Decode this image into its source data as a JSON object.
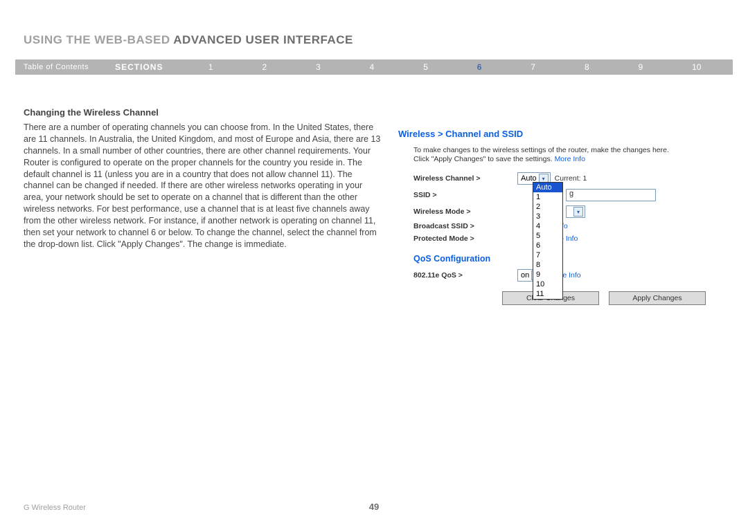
{
  "header": {
    "title_plain": "USING THE WEB-BASED ",
    "title_highlight": "ADVANCED USER INTERFACE"
  },
  "nav": {
    "toc_label": "Table of Contents",
    "sections_label": "SECTIONS",
    "numbers": [
      "1",
      "2",
      "3",
      "4",
      "5",
      "6",
      "7",
      "8",
      "9",
      "10"
    ],
    "active_index": 5,
    "bg_color": "#b4b4b4",
    "active_color": "#426ea6"
  },
  "article": {
    "heading": "Changing the Wireless Channel",
    "body": "There are a number of operating channels you can choose from. In the United States, there are 11 channels. In Australia, the United Kingdom, and most of Europe and Asia, there are 13 channels. In a small number of other countries, there are other channel requirements. Your Router is configured to operate on the proper channels for the country you reside in. The default channel is 11 (unless you are in a country that does not allow channel 11). The channel can be changed if needed. If there are other wireless networks operating in your area, your network should be set to operate on a channel that is different than the other wireless networks. For best performance, use a channel that is at least five channels away from the other wireless network. For instance, if another network is operating on channel 11, then set your network to channel 6 or below. To change the channel, select the channel from the drop-down list. Click \"Apply Changes\". The change is immediate."
  },
  "panel": {
    "breadcrumb": "Wireless > Channel and SSID",
    "description_pre": "To make changes to the wireless settings of the router, make the changes here. Click \"Apply Changes\" to save the settings. ",
    "more_info": "More Info",
    "rows": {
      "channel_label": "Wireless Channel >",
      "channel_selected": "Auto",
      "channel_current": "Current: 1",
      "ssid_label": "SSID >",
      "ssid_visible_char": "g",
      "mode_label": "Wireless Mode >",
      "broadcast_label": "Broadcast SSID >",
      "broadcast_link_fragment": "re Info",
      "protected_label": "Protected Mode >",
      "protected_link": "More Info"
    },
    "channel_options": [
      "Auto",
      "1",
      "2",
      "3",
      "4",
      "5",
      "6",
      "7",
      "8",
      "9",
      "10",
      "11"
    ],
    "channel_highlighted": "Auto",
    "qos": {
      "heading": "QoS Configuration",
      "label": "802.11e QoS >",
      "value": "on",
      "link": "More Info"
    },
    "buttons": {
      "clear": "Clear Changes",
      "apply": "Apply Changes"
    },
    "colors": {
      "link": "#0a5fe0",
      "border": "#7a9abf",
      "button_bg": "#dcdcdc"
    }
  },
  "footer": {
    "product": "G Wireless Router",
    "page_number": "49"
  }
}
